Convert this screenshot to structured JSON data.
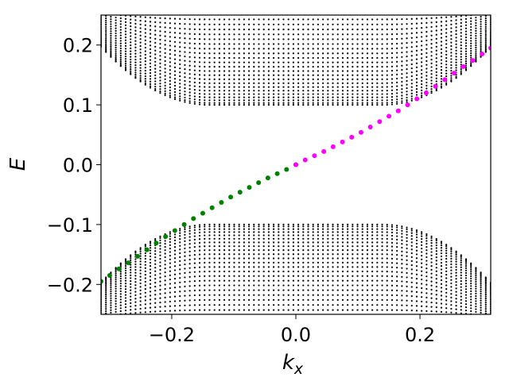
{
  "chart_data": {
    "type": "scatter",
    "title": "",
    "xlabel_main": "k",
    "xlabel_sub": "x",
    "ylabel": "E",
    "xlim": [
      -0.314,
      0.314
    ],
    "ylim": [
      -0.25,
      0.25
    ],
    "xticks": [
      -0.2,
      0.0,
      0.2
    ],
    "xtick_labels": [
      "−0.2",
      "0.0",
      "0.2"
    ],
    "yticks": [
      -0.2,
      -0.1,
      0.0,
      0.1,
      0.2
    ],
    "ytick_labels": [
      "−0.2",
      "−0.1",
      "0.0",
      "0.1",
      "0.2"
    ],
    "grid": false,
    "colors": {
      "bulk": "#000000",
      "edge_left": "#008000",
      "edge_right": "#ff00ff"
    },
    "bulk_bands": {
      "gap_min": 0.1,
      "gap_at_edge": 0.197,
      "gap_flat_halfwidth": 0.14,
      "kx_columns": 80,
      "levels_per_band": 24
    },
    "series": [
      {
        "x": [
          -0.314,
          -0.3,
          -0.285,
          -0.27,
          -0.255,
          -0.24,
          -0.225,
          -0.21,
          -0.195,
          -0.18,
          -0.165,
          -0.15,
          -0.135,
          -0.12,
          -0.105,
          -0.09,
          -0.075,
          -0.06,
          -0.045,
          -0.03,
          -0.015,
          0.0
        ],
        "y": [
          -0.195,
          -0.185,
          -0.174,
          -0.164,
          -0.153,
          -0.142,
          -0.131,
          -0.12,
          -0.11,
          -0.1,
          -0.09,
          -0.081,
          -0.072,
          -0.063,
          -0.054,
          -0.046,
          -0.038,
          -0.03,
          -0.022,
          -0.015,
          -0.008,
          0.0
        ]
      },
      {
        "x": [
          0.0,
          0.015,
          0.03,
          0.045,
          0.06,
          0.075,
          0.09,
          0.105,
          0.12,
          0.135,
          0.15,
          0.165,
          0.18,
          0.195,
          0.21,
          0.225,
          0.24,
          0.255,
          0.27,
          0.285,
          0.3,
          0.314
        ],
        "y": [
          0.0,
          0.008,
          0.015,
          0.022,
          0.03,
          0.038,
          0.046,
          0.054,
          0.063,
          0.072,
          0.081,
          0.09,
          0.1,
          0.11,
          0.12,
          0.131,
          0.142,
          0.153,
          0.164,
          0.174,
          0.185,
          0.195
        ]
      }
    ]
  }
}
